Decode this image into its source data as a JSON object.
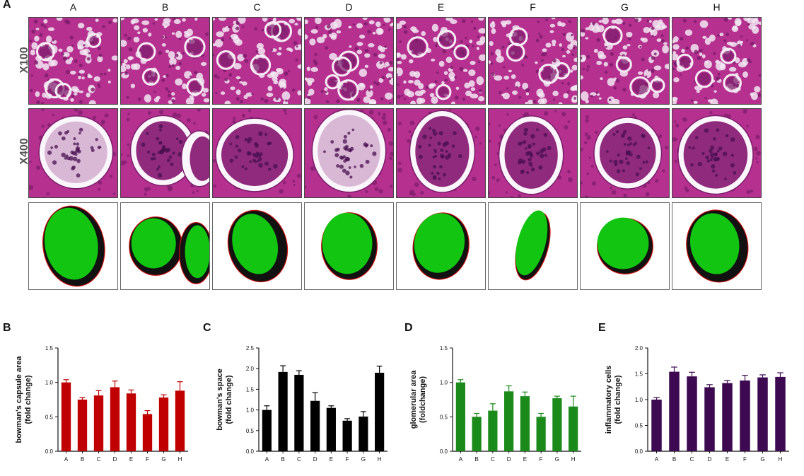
{
  "panels": {
    "a_label": "A",
    "b_label": "B",
    "c_label": "C",
    "d_label": "D",
    "e_label": "E"
  },
  "columns": [
    "A",
    "B",
    "C",
    "D",
    "E",
    "F",
    "G",
    "H"
  ],
  "row_labels": {
    "low": "X100",
    "high": "X400"
  },
  "colors": {
    "tissue": "#b5308f",
    "tissue_dark": "#7a1c6a",
    "space": "#f2e8f2",
    "seg_green": "#11c511",
    "seg_black": "#111111",
    "seg_outline": "#cc1111"
  },
  "chart_data": [
    {
      "type": "bar",
      "panel": "B",
      "ylabel": [
        "bowman's capsule area",
        "(fold change)"
      ],
      "categories": [
        "A",
        "B",
        "C",
        "D",
        "E",
        "F",
        "G",
        "H"
      ],
      "values": [
        1.0,
        0.75,
        0.81,
        0.93,
        0.84,
        0.54,
        0.78,
        0.88
      ],
      "errors": [
        0.04,
        0.03,
        0.07,
        0.09,
        0.05,
        0.05,
        0.04,
        0.13
      ],
      "ylim": [
        0,
        1.5
      ],
      "yticks": [
        "0.0",
        "0.5",
        "1.0",
        "1.5"
      ],
      "color": "#c00000"
    },
    {
      "type": "bar",
      "panel": "C",
      "ylabel": [
        "bowman's space",
        "(fold change)"
      ],
      "categories": [
        "A",
        "B",
        "C",
        "D",
        "E",
        "F",
        "G",
        "H"
      ],
      "values": [
        1.0,
        1.92,
        1.85,
        1.22,
        1.05,
        0.74,
        0.84,
        1.9
      ],
      "errors": [
        0.1,
        0.15,
        0.1,
        0.2,
        0.05,
        0.05,
        0.12,
        0.16
      ],
      "ylim": [
        0,
        2.5
      ],
      "yticks": [
        "0.0",
        "0.5",
        "1.0",
        "1.5",
        "2.0",
        "2.5"
      ],
      "color": "#000000"
    },
    {
      "type": "bar",
      "panel": "D",
      "ylabel": [
        "glomerular area",
        "(foldchange)"
      ],
      "categories": [
        "A",
        "B",
        "C",
        "D",
        "E",
        "F",
        "G",
        "H"
      ],
      "values": [
        1.0,
        0.5,
        0.59,
        0.87,
        0.8,
        0.5,
        0.77,
        0.65
      ],
      "errors": [
        0.04,
        0.05,
        0.1,
        0.08,
        0.06,
        0.05,
        0.03,
        0.15
      ],
      "ylim": [
        0,
        1.5
      ],
      "yticks": [
        "0.0",
        "0.5",
        "1.0",
        "1.5"
      ],
      "color": "#1a8a1a"
    },
    {
      "type": "bar",
      "panel": "E",
      "ylabel": [
        "inflammatory cells",
        "(fold change)"
      ],
      "categories": [
        "A",
        "B",
        "C",
        "D",
        "E",
        "F",
        "G",
        "H"
      ],
      "values": [
        1.0,
        1.54,
        1.45,
        1.24,
        1.32,
        1.37,
        1.43,
        1.44
      ],
      "errors": [
        0.04,
        0.09,
        0.08,
        0.05,
        0.05,
        0.1,
        0.05,
        0.08
      ],
      "ylim": [
        0,
        2.0
      ],
      "yticks": [
        "0.0",
        "0.5",
        "1.0",
        "1.5",
        "2.0"
      ],
      "color": "#3d0a52"
    }
  ]
}
